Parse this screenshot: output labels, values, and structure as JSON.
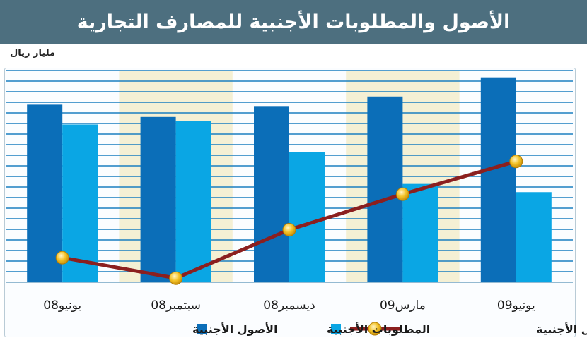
{
  "title": "الأصول والمطلوبات الأجنبية للمصارف التجارية",
  "unit_label": "مليار ريال",
  "colors": {
    "title_bg": "#4d6f7f",
    "assets": "#0b6eb8",
    "liabilities": "#0aa6e4",
    "net_line": "#8b1f1f",
    "net_marker": "#f3c226",
    "band": "#f4f0d4",
    "gridline": "#1a7fc0"
  },
  "chart_data": {
    "type": "bar",
    "categories": [
      "يونيو08",
      "سبتمبر08",
      "ديسمبر08",
      "مارس09",
      "يونيو09"
    ],
    "series": [
      {
        "name": "الأصول الأجنبية",
        "values": [
          260,
          242,
          258,
          272,
          300
        ]
      },
      {
        "name": "المطلوبات الأجنبية",
        "values": [
          231,
          236,
          191,
          144,
          132
        ]
      },
      {
        "name": "صافي الأصول الأجنبية",
        "type": "line",
        "values": [
          36,
          6,
          77,
          129,
          177
        ]
      }
    ],
    "ylim": [
      0,
      310
    ],
    "grid": true,
    "legend_position": "bottom"
  }
}
